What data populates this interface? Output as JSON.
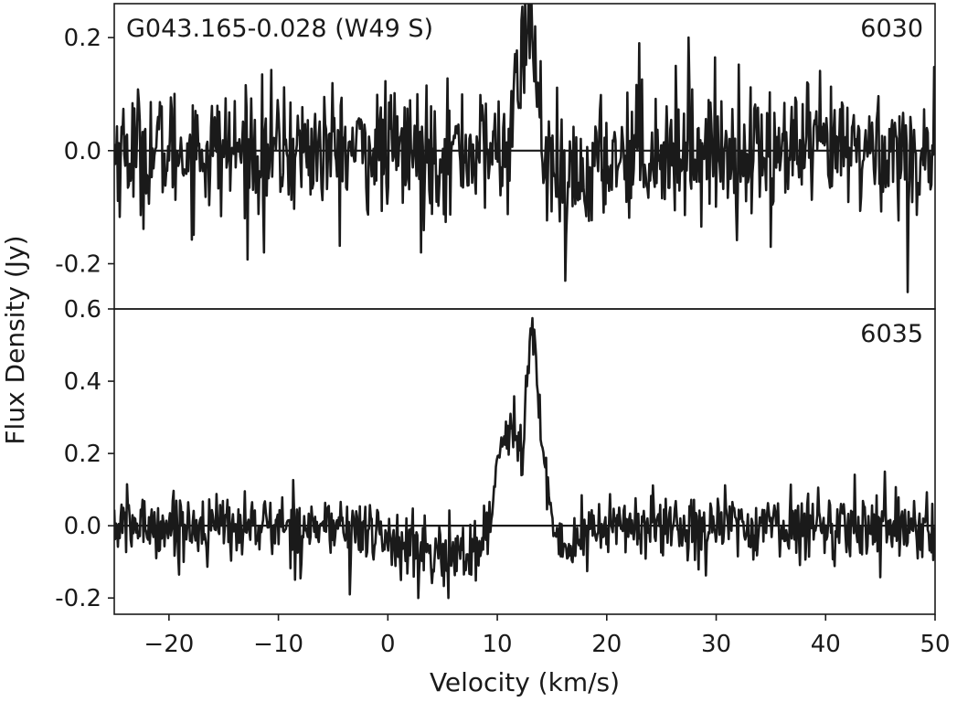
{
  "chart_data": {
    "type": "line",
    "xlabel": "Velocity (km/s)",
    "ylabel": "Flux Density (Jy)",
    "xlim": [
      -25,
      50
    ],
    "xticks": [
      -20,
      -10,
      0,
      10,
      20,
      30,
      40,
      50
    ],
    "xtick_labels": [
      "−20",
      "−10",
      "0",
      "10",
      "20",
      "30",
      "40",
      "50"
    ],
    "line_color": "#1a1a1a",
    "grid": false,
    "panels": [
      {
        "source_label": "G043.165-0.028 (W49 S)",
        "transition_label": "6030",
        "ylim": [
          -0.28,
          0.26
        ],
        "yticks": [
          -0.2,
          0.0,
          0.2
        ],
        "ytick_labels": [
          "-0.2",
          "0.0",
          "0.2"
        ],
        "baseline": 0.0,
        "noise_rms": 0.055,
        "features": [
          {
            "center": 12.5,
            "amplitude": 0.17,
            "width": 0.7
          },
          {
            "center": 13.3,
            "amplitude": 0.12,
            "width": 0.5
          },
          {
            "center": 16.5,
            "amplitude": -0.06,
            "width": 2.0
          }
        ],
        "spikes": [
          {
            "x": -11.3,
            "y": -0.18
          },
          {
            "x": 3.0,
            "y": -0.18
          },
          {
            "x": 16.2,
            "y": -0.23
          },
          {
            "x": 35.0,
            "y": -0.17
          },
          {
            "x": 47.5,
            "y": -0.25
          },
          {
            "x": 23.0,
            "y": 0.19
          },
          {
            "x": 27.5,
            "y": 0.2
          }
        ]
      },
      {
        "source_label": "",
        "transition_label": "6035",
        "ylim": [
          -0.245,
          0.6
        ],
        "yticks": [
          -0.2,
          0.0,
          0.2,
          0.4,
          0.6
        ],
        "ytick_labels": [
          "-0.2",
          "0.0",
          "0.2",
          "0.4",
          "0.6"
        ],
        "baseline": 0.0,
        "noise_rms": 0.045,
        "features": [
          {
            "center": 10.2,
            "amplitude": 0.2,
            "width": 0.6
          },
          {
            "center": 11.2,
            "amplitude": 0.24,
            "width": 0.5
          },
          {
            "center": 12.0,
            "amplitude": 0.12,
            "width": 0.5
          },
          {
            "center": 13.1,
            "amplitude": 0.52,
            "width": 0.45
          },
          {
            "center": 14.0,
            "amplitude": 0.2,
            "width": 0.5
          },
          {
            "center": 5.0,
            "amplitude": -0.08,
            "width": 4.0
          },
          {
            "center": 16.5,
            "amplitude": -0.05,
            "width": 1.5
          }
        ],
        "spikes": [
          {
            "x": 2.8,
            "y": -0.2
          },
          {
            "x": 5.5,
            "y": -0.2
          },
          {
            "x": -3.5,
            "y": -0.19
          },
          {
            "x": 45.4,
            "y": 0.15
          }
        ]
      }
    ]
  }
}
